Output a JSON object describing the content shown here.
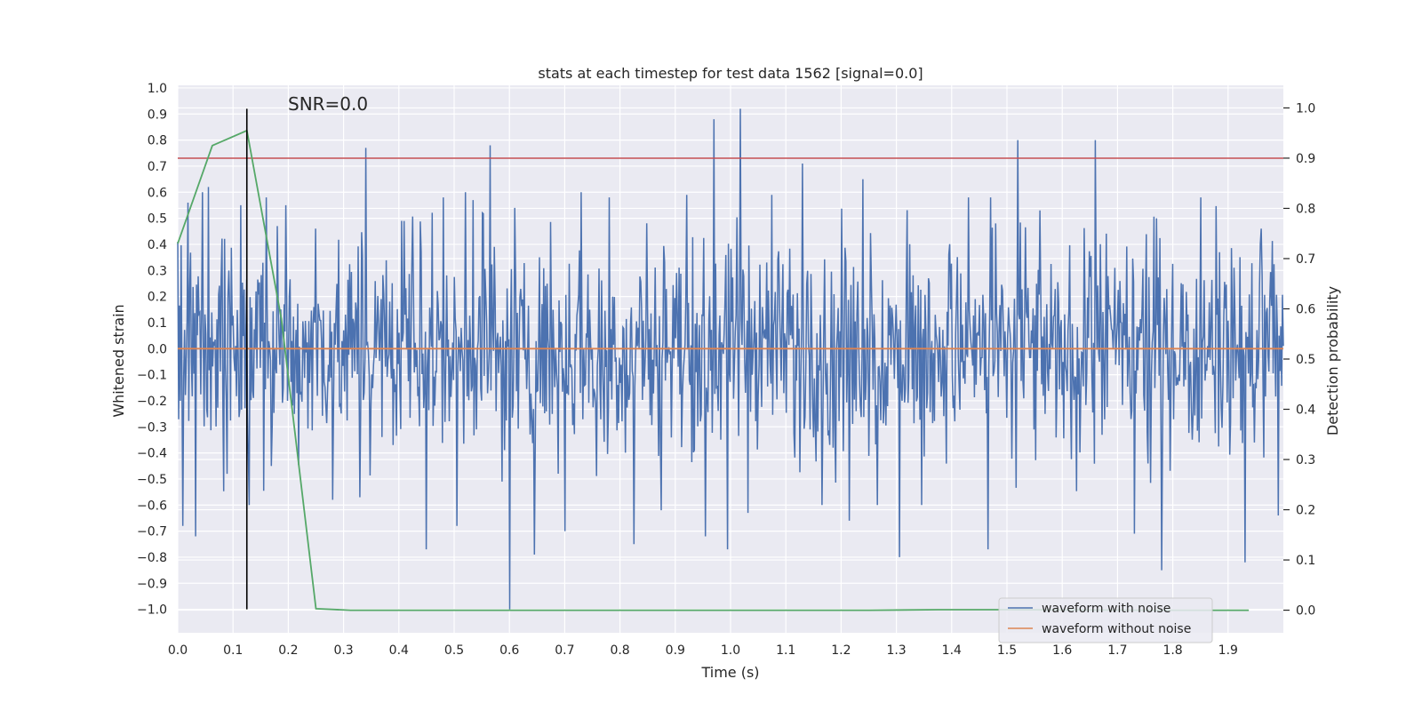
{
  "chart_data": {
    "type": "line",
    "title": "stats at each timestep for test data 1562 [signal=0.0]",
    "xlabel": "Time (s)",
    "ylabel": "Whitened strain",
    "y2label": "Detection probability",
    "xlim": [
      0.0,
      2.0
    ],
    "ylim": [
      -1.09,
      1.01
    ],
    "y2lim": [
      -0.045,
      1.045
    ],
    "xticks": [
      "0.0",
      "0.1",
      "0.2",
      "0.3",
      "0.4",
      "0.5",
      "0.6",
      "0.7",
      "0.8",
      "0.9",
      "1.0",
      "1.1",
      "1.2",
      "1.3",
      "1.4",
      "1.5",
      "1.6",
      "1.7",
      "1.8",
      "1.9"
    ],
    "yticks": [
      "1.0",
      "0.9",
      "0.8",
      "0.7",
      "0.6",
      "0.5",
      "0.4",
      "0.3",
      "0.2",
      "0.1",
      "0.0",
      "−0.1",
      "−0.2",
      "−0.3",
      "−0.4",
      "−0.5",
      "−0.6",
      "−0.7",
      "−0.8",
      "−0.9",
      "−1.0"
    ],
    "y2ticks": [
      "1.0",
      "0.9",
      "0.8",
      "0.7",
      "0.6",
      "0.5",
      "0.4",
      "0.3",
      "0.2",
      "0.1",
      "0.0"
    ],
    "annotation": "SNR=0.0",
    "grid": true,
    "legend_position": "lower-right",
    "series": [
      {
        "name": "waveform with noise",
        "color": "#4c72b0",
        "axis": "left",
        "kind": "noise",
        "x_range": [
          0.0,
          2.0
        ],
        "envelope": [
          -0.35,
          0.35
        ],
        "peaks": [
          {
            "x": 0.0,
            "y": 0.41
          },
          {
            "x": 0.01,
            "y": -0.68
          },
          {
            "x": 0.018,
            "y": 0.56
          },
          {
            "x": 0.032,
            "y": -0.72
          },
          {
            "x": 0.044,
            "y": 0.6
          },
          {
            "x": 0.056,
            "y": 0.62
          },
          {
            "x": 0.09,
            "y": -0.48
          },
          {
            "x": 0.114,
            "y": 0.55
          },
          {
            "x": 0.13,
            "y": -0.6
          },
          {
            "x": 0.16,
            "y": 0.58
          },
          {
            "x": 0.17,
            "y": -0.45
          },
          {
            "x": 0.18,
            "y": 0.47
          },
          {
            "x": 0.195,
            "y": 0.55
          },
          {
            "x": 0.25,
            "y": 0.46
          },
          {
            "x": 0.28,
            "y": -0.58
          },
          {
            "x": 0.33,
            "y": -0.57
          },
          {
            "x": 0.34,
            "y": 0.77
          },
          {
            "x": 0.405,
            "y": 0.49
          },
          {
            "x": 0.45,
            "y": -0.77
          },
          {
            "x": 0.48,
            "y": 0.58
          },
          {
            "x": 0.505,
            "y": -0.68
          },
          {
            "x": 0.52,
            "y": 0.6
          },
          {
            "x": 0.535,
            "y": 0.57
          },
          {
            "x": 0.565,
            "y": 0.78
          },
          {
            "x": 0.6,
            "y": -1.0
          },
          {
            "x": 0.61,
            "y": 0.54
          },
          {
            "x": 0.645,
            "y": -0.79
          },
          {
            "x": 0.7,
            "y": -0.7
          },
          {
            "x": 0.73,
            "y": 0.6
          },
          {
            "x": 0.78,
            "y": 0.58
          },
          {
            "x": 0.825,
            "y": -0.75
          },
          {
            "x": 0.875,
            "y": -0.62
          },
          {
            "x": 0.92,
            "y": 0.59
          },
          {
            "x": 0.955,
            "y": -0.72
          },
          {
            "x": 0.97,
            "y": 0.88
          },
          {
            "x": 0.995,
            "y": -0.77
          },
          {
            "x": 1.018,
            "y": 0.92
          },
          {
            "x": 1.032,
            "y": -0.63
          },
          {
            "x": 1.075,
            "y": 0.59
          },
          {
            "x": 1.13,
            "y": 0.71
          },
          {
            "x": 1.165,
            "y": -0.6
          },
          {
            "x": 1.215,
            "y": -0.66
          },
          {
            "x": 1.24,
            "y": 0.65
          },
          {
            "x": 1.265,
            "y": -0.6
          },
          {
            "x": 1.305,
            "y": -0.8
          },
          {
            "x": 1.345,
            "y": -0.6
          },
          {
            "x": 1.43,
            "y": 0.58
          },
          {
            "x": 1.465,
            "y": -0.77
          },
          {
            "x": 1.47,
            "y": 0.58
          },
          {
            "x": 1.52,
            "y": 0.8
          },
          {
            "x": 1.56,
            "y": 0.53
          },
          {
            "x": 1.66,
            "y": 0.8
          },
          {
            "x": 1.73,
            "y": -0.71
          },
          {
            "x": 1.77,
            "y": 0.5
          },
          {
            "x": 1.78,
            "y": -0.85
          },
          {
            "x": 1.85,
            "y": 0.58
          },
          {
            "x": 1.93,
            "y": -0.82
          },
          {
            "x": 1.96,
            "y": 0.46
          },
          {
            "x": 1.99,
            "y": -0.64
          }
        ]
      },
      {
        "name": "waveform without noise",
        "color": "#dd8452",
        "axis": "left",
        "x": [
          0.0,
          2.0
        ],
        "y": [
          0.0,
          0.0
        ]
      },
      {
        "color": "#55a868",
        "axis": "right",
        "x": [
          0.0,
          0.0625,
          0.125,
          0.1875,
          0.25,
          0.3125,
          0.375,
          0.4375,
          0.5,
          0.75,
          1.0,
          1.25,
          1.375,
          1.5,
          1.75,
          1.9375
        ],
        "y": [
          0.73,
          0.925,
          0.955,
          0.58,
          0.003,
          0.0,
          0.0,
          0.0,
          0.0,
          0.0,
          0.0,
          0.0,
          0.001,
          0.001,
          0.0,
          0.0
        ]
      }
    ],
    "threshold_line": {
      "color": "#c44e52",
      "axis": "right",
      "value": 0.9
    },
    "marker_line": {
      "color": "#000000",
      "x": 0.125,
      "y_range": [
        -1.0,
        0.92
      ]
    }
  }
}
